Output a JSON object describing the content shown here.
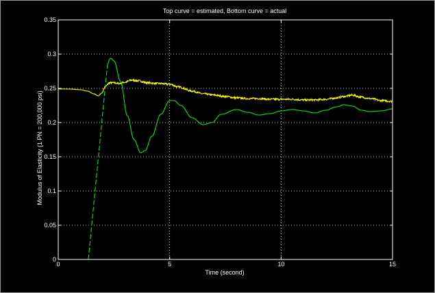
{
  "chart_data": {
    "type": "line",
    "title": "Top curve = estimated, Bottom curve = actual",
    "xlabel": "Time (second)",
    "ylabel": "Modulus of Elasticity (1 PN = 200,000 psi)",
    "xlim": [
      0,
      15
    ],
    "ylim": [
      0,
      0.35
    ],
    "x_ticks": [
      0,
      5,
      10,
      15
    ],
    "x_tick_labels": [
      "0",
      "5",
      "10",
      "15"
    ],
    "y_ticks": [
      0,
      0.05,
      0.1,
      0.15,
      0.2,
      0.25,
      0.3,
      0.35
    ],
    "y_tick_labels": [
      "0",
      "0.05",
      "0.1",
      "0.15",
      "0.2",
      "0.25",
      "0.3",
      "0.35"
    ],
    "grid": true,
    "legend": "none",
    "colors": {
      "background": "#000000",
      "axes": "#ffffff",
      "grid": "#ffffff",
      "estimated": "#ffff00",
      "actual": "#00ee00"
    },
    "series": [
      {
        "style": "solid",
        "color": "#ffff00",
        "noisy": true,
        "x": [
          0,
          0.5,
          1.0,
          1.3,
          1.6,
          1.8,
          1.95,
          2.1,
          2.3,
          2.5,
          2.7,
          3.0,
          3.3,
          3.6,
          4.0,
          4.5,
          5.0,
          5.4,
          6.0,
          6.5,
          7.0,
          7.5,
          8.0,
          8.5,
          9.0,
          9.5,
          10.0,
          10.5,
          11.0,
          11.5,
          12.0,
          12.5,
          12.8,
          13.2,
          13.6,
          14.0,
          14.5,
          15.0
        ],
        "y": [
          0.249,
          0.249,
          0.248,
          0.246,
          0.242,
          0.239,
          0.243,
          0.252,
          0.258,
          0.258,
          0.257,
          0.259,
          0.262,
          0.261,
          0.258,
          0.257,
          0.256,
          0.252,
          0.246,
          0.242,
          0.24,
          0.238,
          0.236,
          0.235,
          0.235,
          0.234,
          0.234,
          0.234,
          0.233,
          0.233,
          0.234,
          0.236,
          0.238,
          0.24,
          0.237,
          0.235,
          0.232,
          0.231
        ]
      },
      {
        "style": "solid",
        "color": "#00ee00",
        "noisy": false,
        "x": [
          0,
          1.35,
          2.35,
          2.5,
          2.8,
          3.1,
          3.4,
          3.7,
          3.9,
          4.2,
          4.6,
          5.0,
          5.2,
          5.5,
          6.0,
          6.5,
          6.9,
          7.3,
          8.0,
          8.5,
          9.0,
          9.5,
          10.0,
          10.5,
          11.0,
          11.5,
          12.0,
          12.5,
          12.8,
          13.2,
          13.6,
          14.0,
          14.5,
          15.0
        ],
        "y": [
          0,
          0,
          0.294,
          0.29,
          0.26,
          0.21,
          0.175,
          0.156,
          0.159,
          0.18,
          0.212,
          0.232,
          0.232,
          0.225,
          0.207,
          0.197,
          0.2,
          0.212,
          0.219,
          0.215,
          0.211,
          0.213,
          0.217,
          0.219,
          0.217,
          0.214,
          0.218,
          0.223,
          0.226,
          0.224,
          0.218,
          0.216,
          0.217,
          0.22
        ]
      }
    ]
  }
}
